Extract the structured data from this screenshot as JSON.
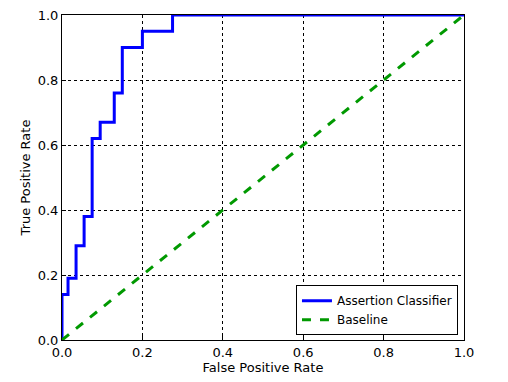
{
  "chart_data": {
    "type": "line",
    "x_label": "False Positive Rate",
    "y_label": "True Positive Rate",
    "series": [
      {
        "name": "Assertion Classifier",
        "color": "#0000ff",
        "line_style": "step",
        "x": [
          0,
          0,
          0.015,
          0.035,
          0.055,
          0.075,
          0.095,
          0.13,
          0.15,
          0.2,
          0.275,
          1.0
        ],
        "values": [
          0,
          0.14,
          0.19,
          0.29,
          0.38,
          0.62,
          0.67,
          0.76,
          0.9,
          0.95,
          1.0,
          1.0
        ]
      },
      {
        "name": "Baseline",
        "color": "#009900",
        "line_style": "dashed",
        "x": [
          0,
          1
        ],
        "values": [
          0,
          1
        ]
      }
    ],
    "xlim": [
      0,
      1
    ],
    "ylim": [
      0,
      1
    ],
    "xticks": [
      {
        "value": 0,
        "label": "0.0"
      },
      0.2,
      0.4,
      0.6,
      0.8,
      {
        "value": 1,
        "label": "1.0"
      }
    ],
    "yticks": [
      {
        "value": 0,
        "label": "0.0"
      },
      0.2,
      0.4,
      0.6,
      0.8,
      {
        "value": 1,
        "label": "1.0"
      }
    ],
    "grid": true,
    "legend": "lower right"
  }
}
